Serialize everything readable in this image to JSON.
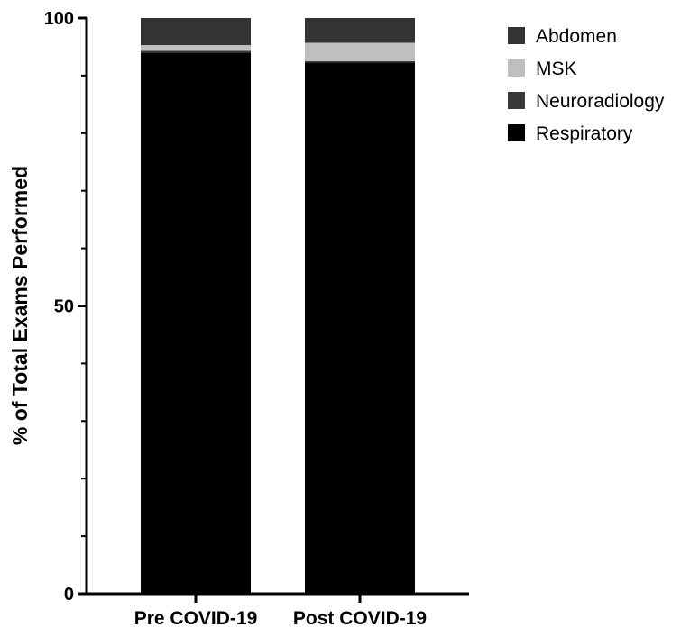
{
  "chart_data": {
    "type": "bar",
    "stacked": true,
    "categories": [
      "Pre COVID-19",
      "Post COVID-19"
    ],
    "series": [
      {
        "name": "Respiratory",
        "values": [
          94,
          92.3
        ],
        "color": "#000000"
      },
      {
        "name": "Neuroradiology",
        "values": [
          0.3,
          0.2
        ],
        "color": "#3a3a3a"
      },
      {
        "name": "MSK",
        "values": [
          1.0,
          3.2
        ],
        "color": "#bfbfbf"
      },
      {
        "name": "Abdomen",
        "values": [
          4.7,
          4.3
        ],
        "color": "#333333"
      }
    ],
    "legend_order": [
      "Abdomen",
      "MSK",
      "Neuroradiology",
      "Respiratory"
    ],
    "title": "",
    "xlabel": "",
    "ylabel": "% of Total Exams Performed",
    "ylim": [
      0,
      100
    ],
    "yticks_major": [
      0,
      50,
      100
    ],
    "yticks_minor_step": 10,
    "grid": false,
    "legend_position": "top-right"
  }
}
